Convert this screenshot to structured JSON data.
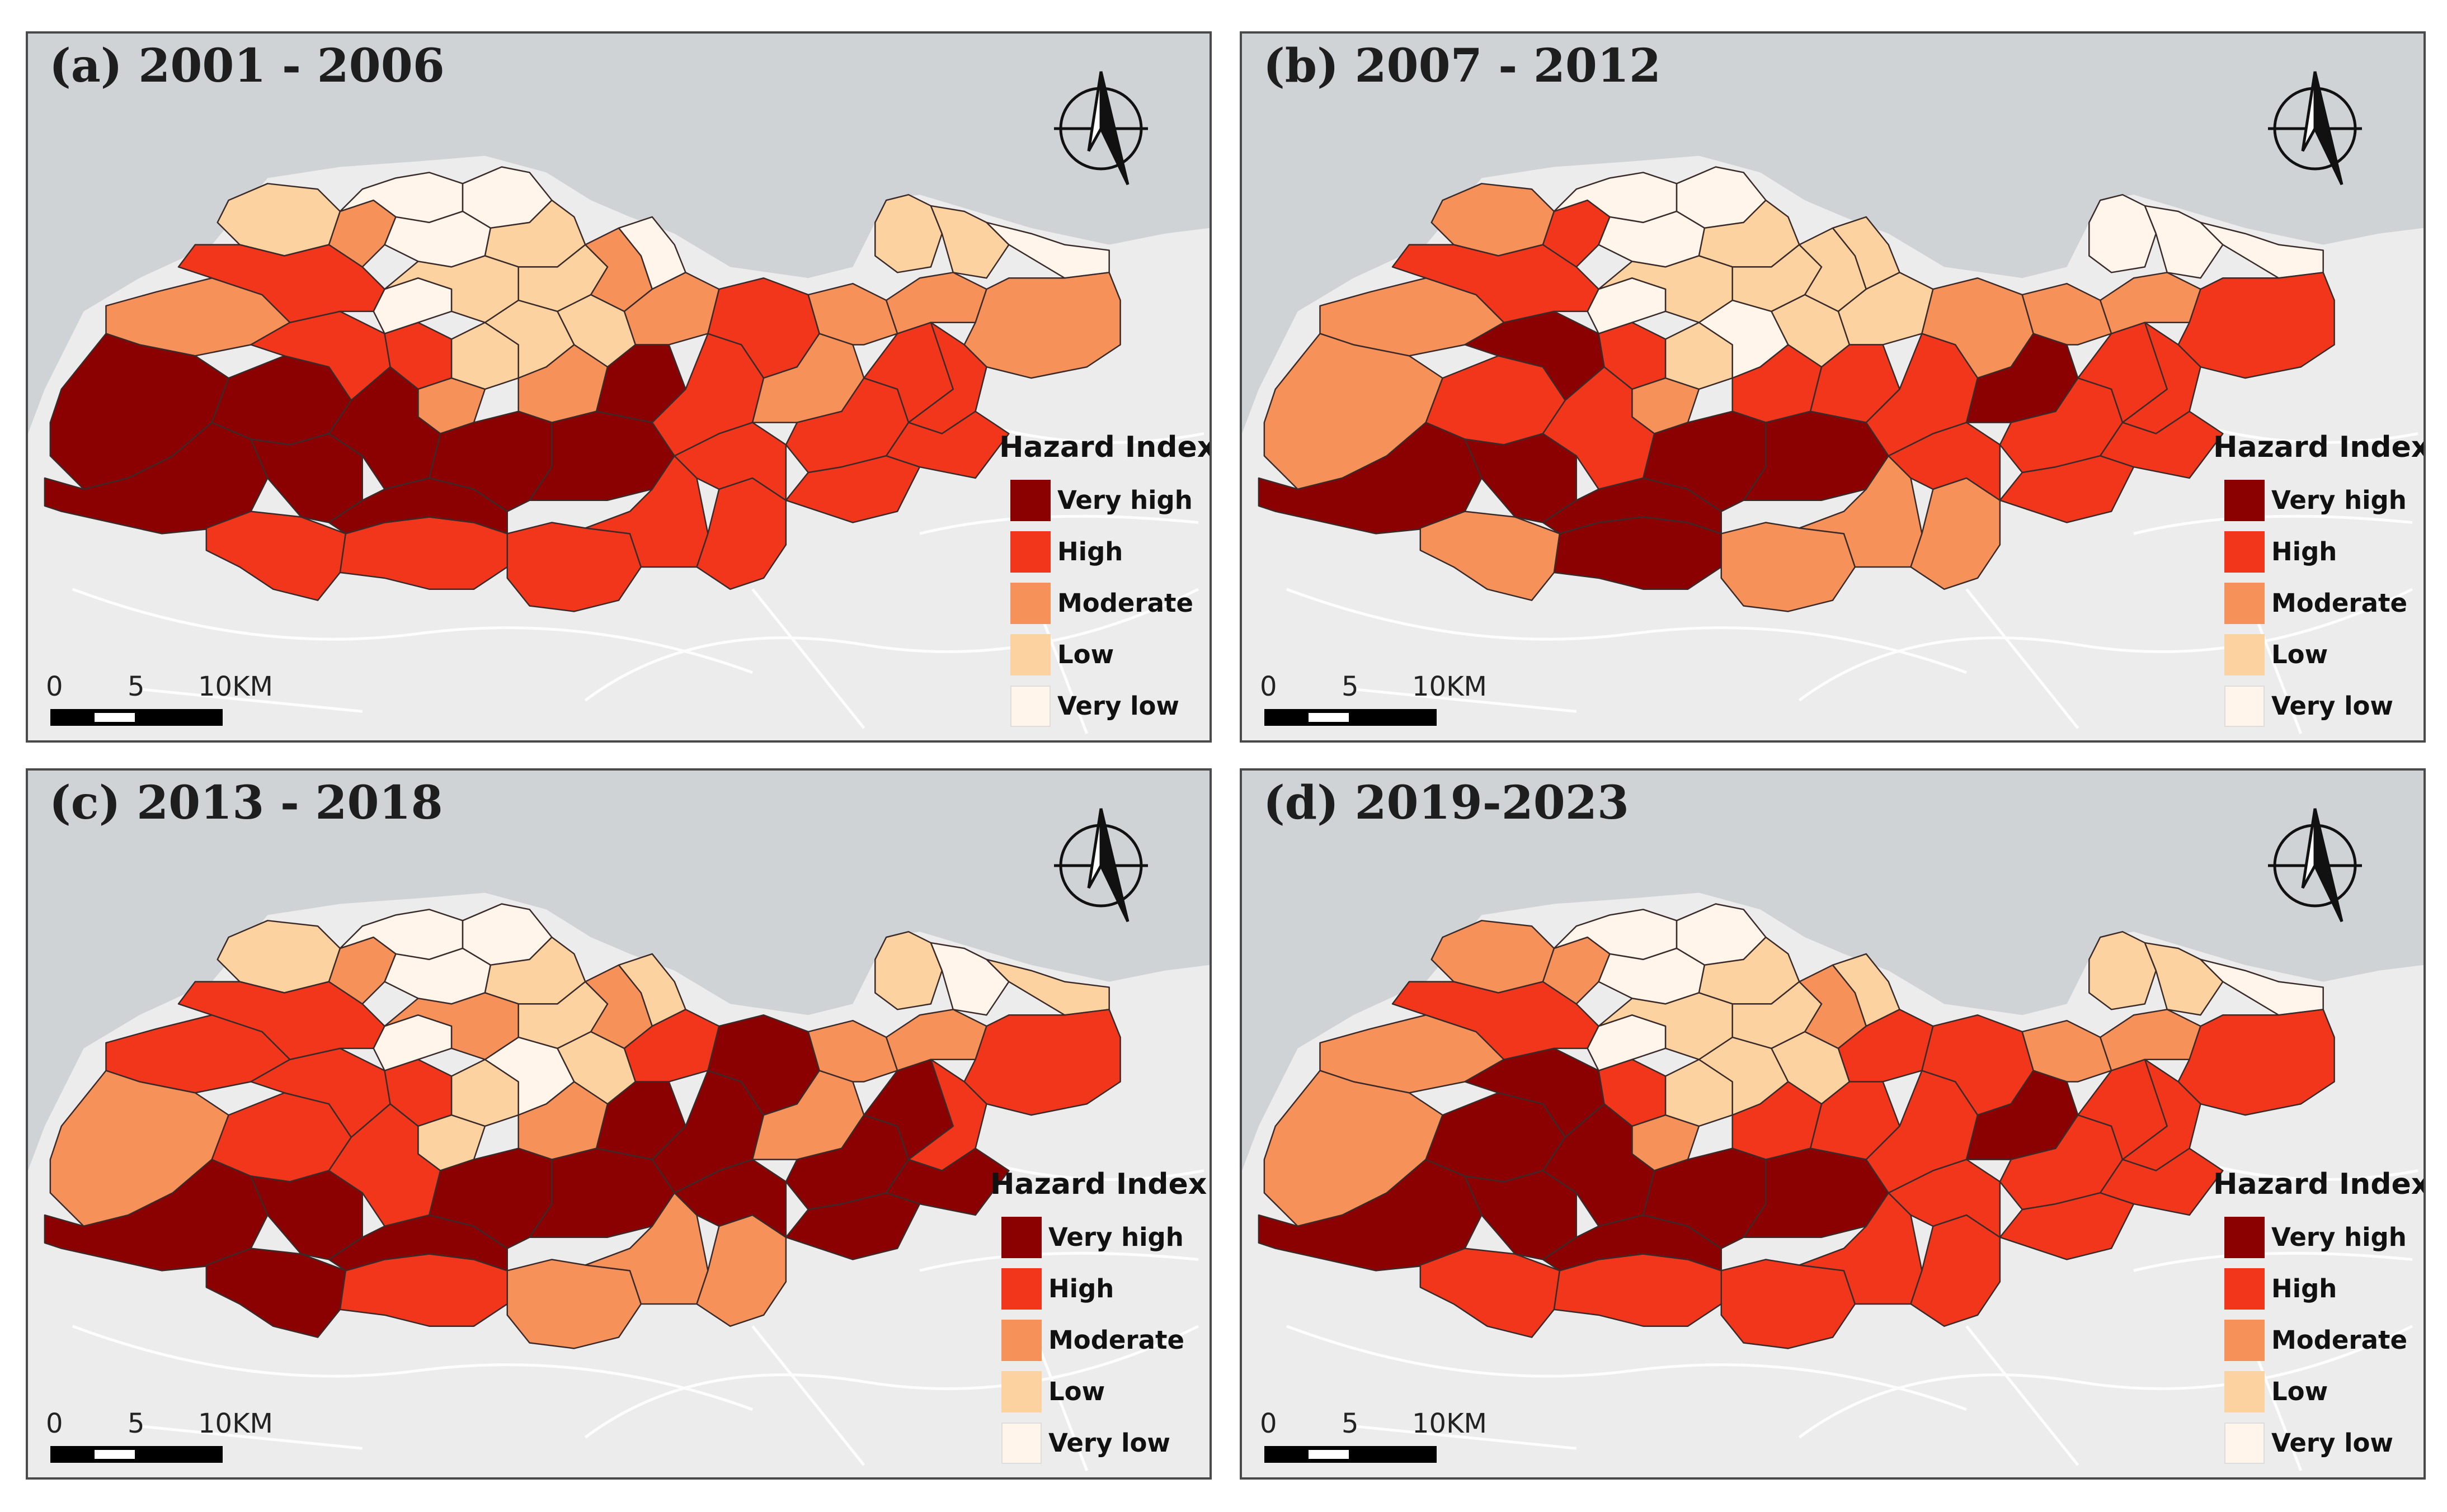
{
  "panels": [
    {
      "title": "(a) 2001 - 2006",
      "scenario": 0
    },
    {
      "title": "(b) 2007 - 2012",
      "scenario": 1
    },
    {
      "title": "(c) 2013 - 2018",
      "scenario": 2
    },
    {
      "title": "(d) 2019-2023",
      "scenario": 3
    }
  ],
  "legend": {
    "title": "Hazard Index",
    "classes": [
      {
        "label": "Very high",
        "color": "#8b0000"
      },
      {
        "label": "High",
        "color": "#f2361c"
      },
      {
        "label": "Moderate",
        "color": "#f7915a"
      },
      {
        "label": "Low",
        "color": "#fcd3a0"
      },
      {
        "label": "Very low",
        "color": "#fff5eb"
      }
    ]
  },
  "scale_bar": {
    "ticks": [
      "0",
      "5",
      "10KM"
    ]
  },
  "colors": {
    "sea": "#cfd3d5",
    "land": "#ececec",
    "roads": "#ffffff",
    "boundary": "#3a2a2a"
  },
  "icons": {
    "north_arrow": "north-arrow-icon"
  }
}
